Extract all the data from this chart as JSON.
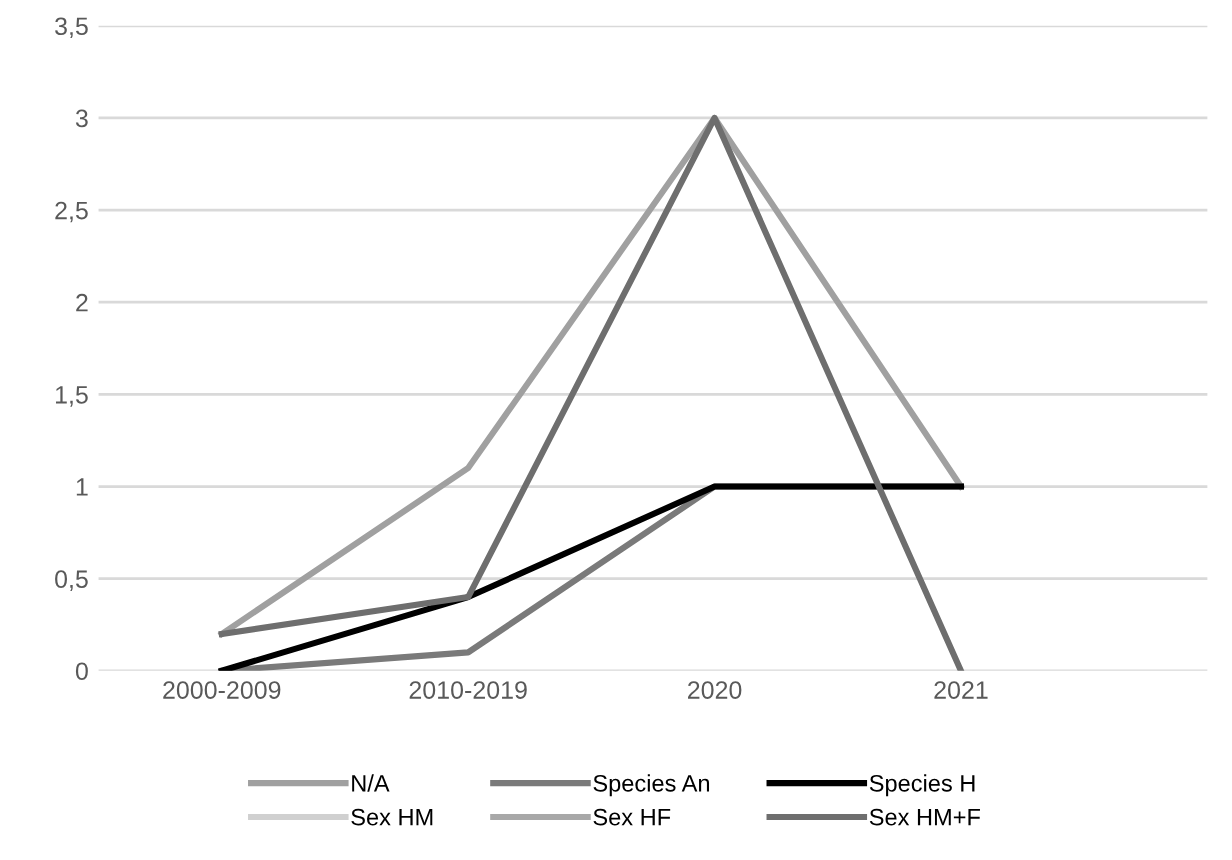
{
  "chart_data": {
    "type": "line",
    "categories": [
      "2000-2009",
      "2010-2019",
      "2020",
      "2021"
    ],
    "series": [
      {
        "name": "N/A",
        "color": "#a0a0a0",
        "values": [
          0.2,
          1.1,
          3,
          1
        ]
      },
      {
        "name": "Species An",
        "color": "#7a7a7a",
        "values": [
          0,
          0.1,
          1,
          1
        ]
      },
      {
        "name": "Species H",
        "color": "#000000",
        "values": [
          0,
          0.4,
          1,
          1
        ]
      },
      {
        "name": "Sex HM",
        "color": "#d0d0d0",
        "values": [
          null,
          null,
          null,
          null
        ]
      },
      {
        "name": "Sex HF",
        "color": "#a8a8a8",
        "values": [
          null,
          null,
          null,
          null
        ]
      },
      {
        "name": "Sex HM+F",
        "color": "#6e6e6e",
        "values": [
          0.2,
          0.4,
          3,
          0
        ]
      }
    ],
    "ylim": [
      0,
      3.5
    ],
    "yticks": [
      0,
      {
        "value": 0.5,
        "label": "0,5"
      },
      1,
      {
        "value": 1.5,
        "label": "1,5"
      },
      2,
      {
        "value": 2.5,
        "label": "2,5"
      },
      3,
      {
        "value": 3.5,
        "label": "3,5"
      }
    ],
    "grid": "y",
    "legend": "bottom",
    "marker": "none",
    "line_style": "solid"
  }
}
